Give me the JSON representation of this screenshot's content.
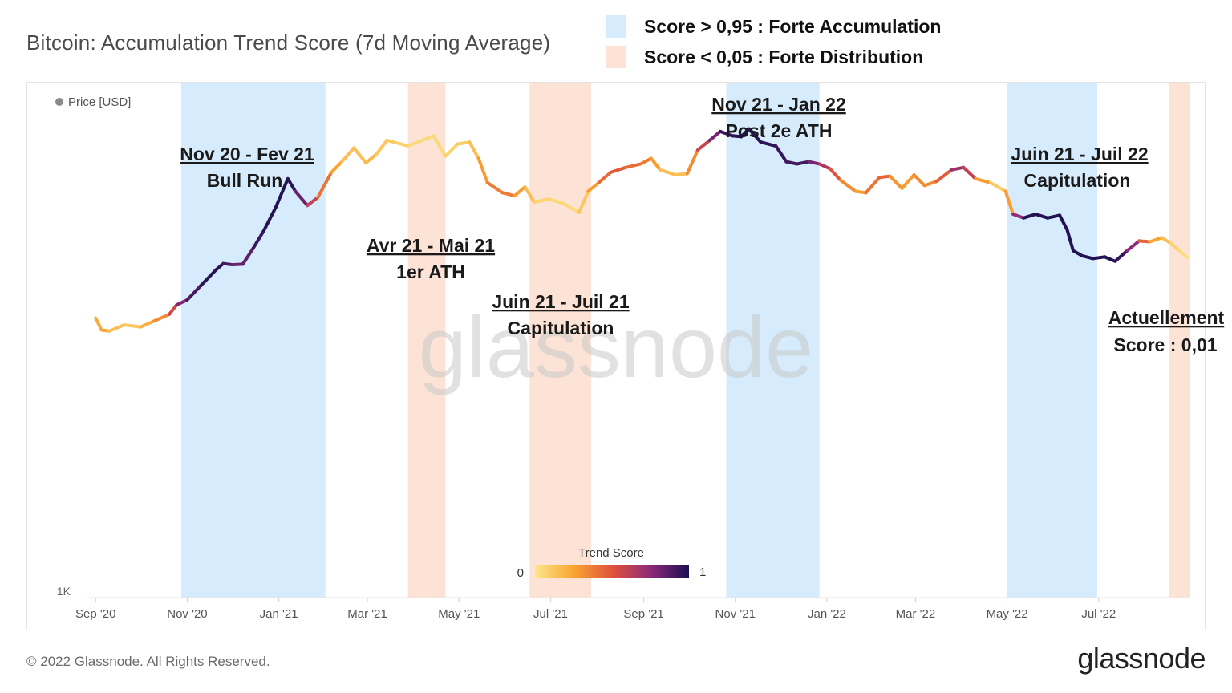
{
  "title": "Bitcoin: Accumulation Trend Score (7d Moving Average)",
  "legend": [
    {
      "label": "Score > 0,95 : Forte Accumulation",
      "color": "#d6ebfb"
    },
    {
      "label": "Score < 0,05 : Forte Distribution",
      "color": "#fde3d6"
    }
  ],
  "footer": {
    "copyright": "© 2022 Glassnode. All Rights Reserved.",
    "logo": "glassnode"
  },
  "colors": {
    "accumulation": "#d6ebfb",
    "distribution": "#fde3d6"
  },
  "chart_data": {
    "type": "line",
    "series_label": "Price [USD]",
    "y_scale": "log",
    "y_tick_labels": [
      "1K"
    ],
    "x_tick_labels": [
      "Sep '20",
      "Nov '20",
      "Jan '21",
      "Mar '21",
      "May '21",
      "Jul '21",
      "Sep '21",
      "Nov '21",
      "Jan '22",
      "Mar '22",
      "May '22",
      "Jul '22"
    ],
    "x_range": [
      "2020-08-26",
      "2022-08-31"
    ],
    "y_range": [
      900,
      100000
    ],
    "watermark": "glassnode",
    "shaded_periods": [
      {
        "start": "2020-10-28",
        "end": "2021-02-01",
        "kind": "accumulation"
      },
      {
        "start": "2021-03-28",
        "end": "2021-04-22",
        "kind": "distribution"
      },
      {
        "start": "2021-06-17",
        "end": "2021-07-28",
        "kind": "distribution"
      },
      {
        "start": "2021-10-26",
        "end": "2021-12-27",
        "kind": "accumulation"
      },
      {
        "start": "2022-05-01",
        "end": "2022-06-30",
        "kind": "accumulation"
      },
      {
        "start": "2022-08-17",
        "end": "2022-08-31",
        "kind": "distribution"
      }
    ],
    "annotations": [
      {
        "line1": "Nov 20 - Fev 21",
        "line2": "Bull Run"
      },
      {
        "line1": "Avr 21 - Mai 21",
        "line2": "1er ATH"
      },
      {
        "line1": "Juin 21 - Juil 21",
        "line2": "Capitulation"
      },
      {
        "line1": "Nov 21 - Jan 22",
        "line2": "Post 2e ATH"
      },
      {
        "line1": "Juin 21 - Juil 22",
        "line2": "Capitulation"
      },
      {
        "line1": "Actuellement",
        "line2": "Score : 0,01"
      }
    ],
    "colorbar": {
      "title": "Trend Score",
      "min_label": "0",
      "max_label": "1"
    },
    "points": [
      [
        "2020-09-01",
        11600,
        0.15
      ],
      [
        "2020-09-05",
        10400,
        0.3
      ],
      [
        "2020-09-10",
        10300,
        0.2
      ],
      [
        "2020-09-20",
        10900,
        0.1
      ],
      [
        "2020-10-01",
        10700,
        0.15
      ],
      [
        "2020-10-10",
        11300,
        0.25
      ],
      [
        "2020-10-20",
        12000,
        0.4
      ],
      [
        "2020-10-25",
        13100,
        0.7
      ],
      [
        "2020-11-01",
        13700,
        0.85
      ],
      [
        "2020-11-10",
        15600,
        0.95
      ],
      [
        "2020-11-20",
        18000,
        0.98
      ],
      [
        "2020-11-25",
        19100,
        0.95
      ],
      [
        "2020-12-01",
        18900,
        0.85
      ],
      [
        "2020-12-08",
        19000,
        0.8
      ],
      [
        "2020-12-15",
        22000,
        0.9
      ],
      [
        "2020-12-22",
        25800,
        0.97
      ],
      [
        "2020-12-30",
        32000,
        0.98
      ],
      [
        "2021-01-07",
        41500,
        0.98
      ],
      [
        "2021-01-12",
        37000,
        0.95
      ],
      [
        "2021-01-20",
        32500,
        0.7
      ],
      [
        "2021-01-27",
        35000,
        0.5
      ],
      [
        "2021-02-05",
        44000,
        0.3
      ],
      [
        "2021-02-12",
        48500,
        0.2
      ],
      [
        "2021-02-20",
        55000,
        0.1
      ],
      [
        "2021-02-28",
        48000,
        0.2
      ],
      [
        "2021-03-07",
        52000,
        0.15
      ],
      [
        "2021-03-14",
        59000,
        0.1
      ],
      [
        "2021-03-21",
        57500,
        0.1
      ],
      [
        "2021-03-28",
        56000,
        0.05
      ],
      [
        "2021-04-05",
        58500,
        0.05
      ],
      [
        "2021-04-14",
        61500,
        0.05
      ],
      [
        "2021-04-22",
        51000,
        0.05
      ],
      [
        "2021-04-30",
        57000,
        0.1
      ],
      [
        "2021-05-08",
        58000,
        0.1
      ],
      [
        "2021-05-14",
        50000,
        0.2
      ],
      [
        "2021-05-20",
        40000,
        0.35
      ],
      [
        "2021-05-30",
        36500,
        0.4
      ],
      [
        "2021-06-07",
        35500,
        0.35
      ],
      [
        "2021-06-14",
        38500,
        0.2
      ],
      [
        "2021-06-20",
        33500,
        0.1
      ],
      [
        "2021-06-30",
        34500,
        0.05
      ],
      [
        "2021-07-10",
        33000,
        0.05
      ],
      [
        "2021-07-20",
        30500,
        0.05
      ],
      [
        "2021-07-26",
        37000,
        0.2
      ],
      [
        "2021-08-02",
        40000,
        0.35
      ],
      [
        "2021-08-10",
        44000,
        0.5
      ],
      [
        "2021-08-20",
        46000,
        0.45
      ],
      [
        "2021-08-30",
        47500,
        0.4
      ],
      [
        "2021-09-06",
        50000,
        0.35
      ],
      [
        "2021-09-12",
        45000,
        0.2
      ],
      [
        "2021-09-22",
        43000,
        0.1
      ],
      [
        "2021-09-30",
        43500,
        0.2
      ],
      [
        "2021-10-07",
        54000,
        0.45
      ],
      [
        "2021-10-15",
        59000,
        0.7
      ],
      [
        "2021-10-22",
        64000,
        0.9
      ],
      [
        "2021-10-30",
        61500,
        0.97
      ],
      [
        "2021-11-05",
        61000,
        0.98
      ],
      [
        "2021-11-10",
        65500,
        0.98
      ],
      [
        "2021-11-18",
        58000,
        0.97
      ],
      [
        "2021-11-28",
        56000,
        0.95
      ],
      [
        "2021-12-05",
        48500,
        0.92
      ],
      [
        "2021-12-12",
        47500,
        0.92
      ],
      [
        "2021-12-20",
        48500,
        0.9
      ],
      [
        "2021-12-27",
        47500,
        0.7
      ],
      [
        "2022-01-03",
        45500,
        0.6
      ],
      [
        "2022-01-10",
        41000,
        0.4
      ],
      [
        "2022-01-20",
        37000,
        0.25
      ],
      [
        "2022-01-27",
        36500,
        0.3
      ],
      [
        "2022-02-05",
        42000,
        0.5
      ],
      [
        "2022-02-12",
        42500,
        0.4
      ],
      [
        "2022-02-20",
        38000,
        0.2
      ],
      [
        "2022-02-28",
        43000,
        0.35
      ],
      [
        "2022-03-07",
        39000,
        0.3
      ],
      [
        "2022-03-15",
        40500,
        0.35
      ],
      [
        "2022-03-25",
        45000,
        0.6
      ],
      [
        "2022-04-02",
        46000,
        0.8
      ],
      [
        "2022-04-10",
        41500,
        0.4
      ],
      [
        "2022-04-20",
        40000,
        0.15
      ],
      [
        "2022-04-30",
        37000,
        0.05
      ],
      [
        "2022-05-05",
        30000,
        0.5
      ],
      [
        "2022-05-12",
        29000,
        0.97
      ],
      [
        "2022-05-20",
        30000,
        0.98
      ],
      [
        "2022-05-28",
        29000,
        0.98
      ],
      [
        "2022-06-05",
        29700,
        0.98
      ],
      [
        "2022-06-10",
        26000,
        0.98
      ],
      [
        "2022-06-14",
        21500,
        0.98
      ],
      [
        "2022-06-20",
        20500,
        0.98
      ],
      [
        "2022-06-27",
        20000,
        0.98
      ],
      [
        "2022-07-05",
        20300,
        0.98
      ],
      [
        "2022-07-12",
        19500,
        0.98
      ],
      [
        "2022-07-20",
        21500,
        0.9
      ],
      [
        "2022-07-28",
        23500,
        0.6
      ],
      [
        "2022-08-04",
        23300,
        0.3
      ],
      [
        "2022-08-12",
        24200,
        0.2
      ],
      [
        "2022-08-18",
        23000,
        0.1
      ],
      [
        "2022-08-24",
        21400,
        0.05
      ],
      [
        "2022-08-29",
        20200,
        0.01
      ]
    ]
  }
}
